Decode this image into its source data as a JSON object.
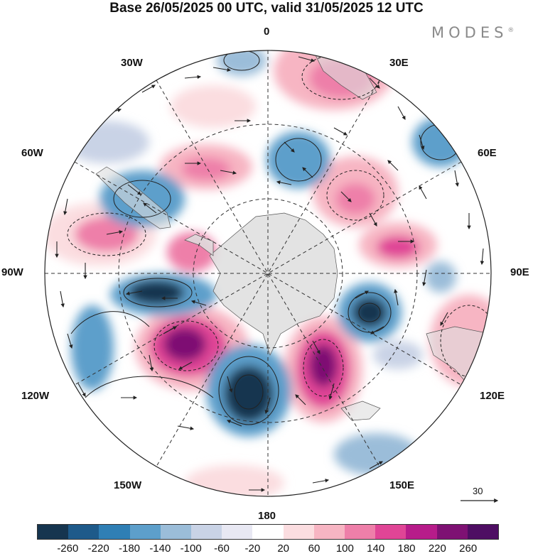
{
  "title": "Base 26/05/2025 00 UTC, valid 31/05/2025 12 UTC",
  "brand": {
    "text": "MODES",
    "mark": "®"
  },
  "longitude_labels": {
    "n0": "0",
    "e30": "30E",
    "e60": "60E",
    "e90": "90E",
    "e120": "120E",
    "e150": "150E",
    "s180": "180",
    "w150": "150W",
    "w120": "120W",
    "w90": "90W",
    "w60": "60W",
    "w30": "30W"
  },
  "vector_reference": {
    "value": "30",
    "icon": "arrow-icon"
  },
  "colorbar": {
    "ticks": [
      "-260",
      "-220",
      "-180",
      "-140",
      "-100",
      "-60",
      "-20",
      "20",
      "60",
      "100",
      "140",
      "180",
      "220",
      "260"
    ],
    "colors": [
      "#16354f",
      "#1e5a8a",
      "#2f7fb5",
      "#5d9fcb",
      "#9bbdd9",
      "#c9d3e6",
      "#e8e8f3",
      "#ffffff",
      "#fbdde0",
      "#f7b5c3",
      "#ee7fa9",
      "#e04596",
      "#b71c8a",
      "#7e1173",
      "#4e0e63"
    ]
  },
  "colors": {
    "land": "#dedede",
    "ocean_bg": "#ffffff",
    "graticule": "#333333",
    "positive_accent": "#e04596",
    "negative_accent": "#2f7fb5"
  }
}
